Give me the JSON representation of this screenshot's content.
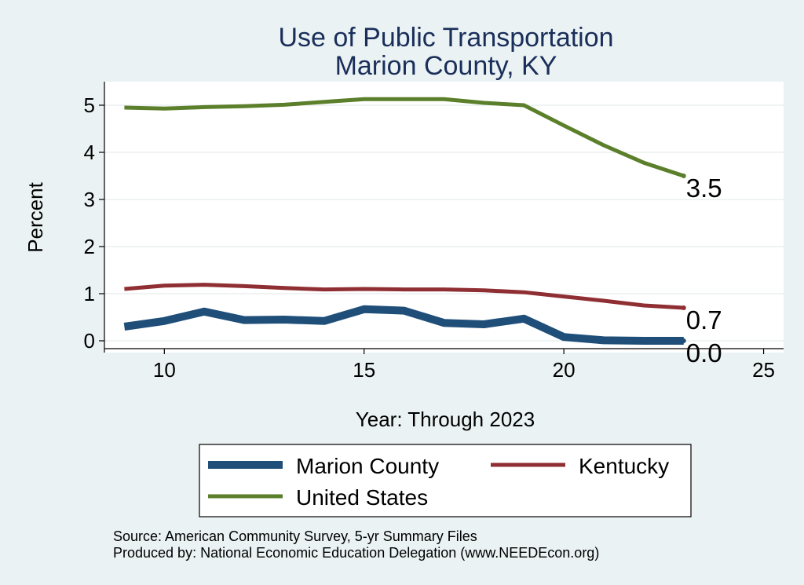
{
  "chart_data": {
    "type": "line",
    "title": [
      "Use of Public Transportation",
      "Marion County, KY"
    ],
    "xlabel": "Year: Through 2023",
    "ylabel": "Percent",
    "xlim": [
      8.5,
      25.5
    ],
    "ylim": [
      -0.25,
      5.5
    ],
    "xticks": [
      10,
      15,
      20,
      25
    ],
    "yticks": [
      0,
      1,
      2,
      3,
      4,
      5
    ],
    "grid": true,
    "x": [
      9,
      10,
      11,
      12,
      13,
      14,
      15,
      16,
      17,
      18,
      19,
      20,
      21,
      22,
      23
    ],
    "series": [
      {
        "name": "Marion County",
        "color": "#1f4e79",
        "values": [
          0.3,
          0.42,
          0.62,
          0.44,
          0.45,
          0.42,
          0.67,
          0.64,
          0.38,
          0.35,
          0.47,
          0.08,
          0.01,
          0.0,
          0.0
        ],
        "end_label": "0.0"
      },
      {
        "name": "Kentucky",
        "color": "#8f2f33",
        "values": [
          1.1,
          1.17,
          1.19,
          1.16,
          1.12,
          1.09,
          1.1,
          1.09,
          1.09,
          1.07,
          1.03,
          0.94,
          0.85,
          0.75,
          0.7
        ],
        "end_label": "0.7"
      },
      {
        "name": "United States",
        "color": "#5b7f2b",
        "values": [
          4.95,
          4.93,
          4.96,
          4.98,
          5.01,
          5.07,
          5.13,
          5.13,
          5.13,
          5.05,
          5.0,
          4.57,
          4.15,
          3.78,
          3.5
        ],
        "end_label": "3.5"
      }
    ],
    "legend": {
      "placement": "bottom",
      "entries": [
        "Marion County",
        "Kentucky",
        "United States"
      ]
    }
  },
  "notes": {
    "source": "Source: American Community Survey, 5-yr Summary Files",
    "produced": "Produced by: National Economic Education Delegation (www.NEEDEcon.org)"
  }
}
